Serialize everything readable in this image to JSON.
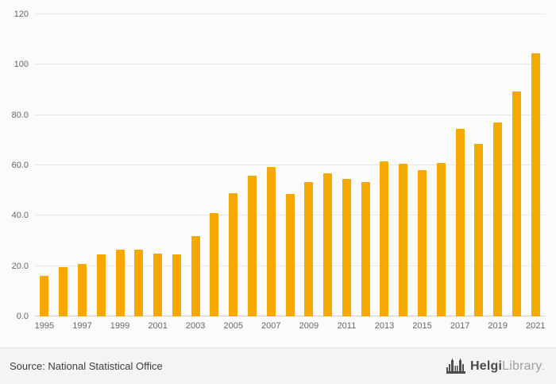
{
  "chart_data": {
    "type": "bar",
    "title": "",
    "xlabel": "",
    "ylabel": "",
    "categories": [
      1995,
      1996,
      1997,
      1998,
      1999,
      2000,
      2001,
      2002,
      2003,
      2004,
      2005,
      2006,
      2007,
      2008,
      2009,
      2010,
      2011,
      2012,
      2013,
      2014,
      2015,
      2016,
      2017,
      2018,
      2019,
      2020,
      2021
    ],
    "values": [
      16,
      19.5,
      21,
      24.5,
      26.5,
      26.5,
      25,
      24.5,
      32,
      41,
      49,
      56,
      59.5,
      48.5,
      53.5,
      57,
      54.5,
      53.5,
      61.5,
      60.5,
      58,
      61,
      74.5,
      68.5,
      77,
      89.5,
      104.5
    ],
    "ylim": [
      0,
      120
    ],
    "yticks": [
      {
        "v": 120,
        "label": "120"
      },
      {
        "v": 100,
        "label": "100"
      },
      {
        "v": 80,
        "label": "80.0"
      },
      {
        "v": 60,
        "label": "60.0"
      },
      {
        "v": 40,
        "label": "40.0"
      },
      {
        "v": 20,
        "label": "20.0"
      },
      {
        "v": 0,
        "label": "0.0"
      }
    ],
    "xtick_labels": [
      "1995",
      "1997",
      "1999",
      "2001",
      "2003",
      "2005",
      "2007",
      "2009",
      "2011",
      "2013",
      "2015",
      "2017",
      "2019",
      "2021"
    ],
    "bar_color": "#F5A800",
    "grid": true,
    "legend": "none"
  },
  "footer": {
    "source": "Source: National Statistical Office",
    "brand": {
      "primary": "Helgi",
      "secondary": "Library",
      "suffix": "."
    }
  },
  "icons": {
    "logo": "bridge-icon"
  }
}
